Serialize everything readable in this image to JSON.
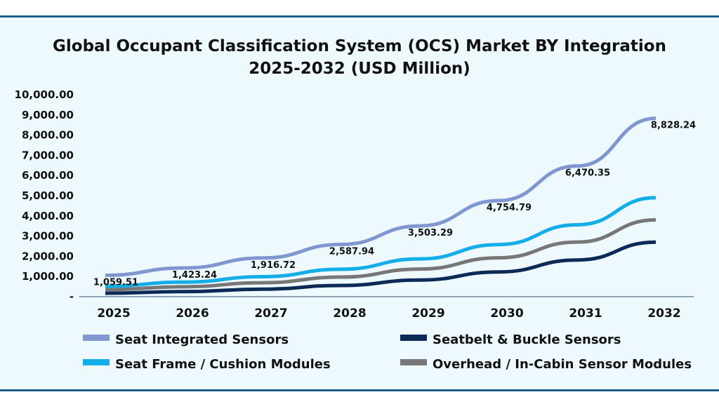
{
  "chart_data": {
    "type": "line",
    "title": "Global Occupant Classification System (OCS) Market BY Integration",
    "subtitle": "2025-2032 (USD Million)",
    "categories": [
      "2025",
      "2026",
      "2027",
      "2028",
      "2029",
      "2030",
      "2031",
      "2032"
    ],
    "y_ticks": [
      "-",
      "1,000.00",
      "2,000.00",
      "3,000.00",
      "4,000.00",
      "5,000.00",
      "6,000.00",
      "7,000.00",
      "8,000.00",
      "9,000.00",
      "10,000.00"
    ],
    "ylim": [
      0,
      10000
    ],
    "grid": false,
    "legend_position": "bottom",
    "series": [
      {
        "name": "Seat Integrated Sensors",
        "color": "#8096d0",
        "values": [
          1059.51,
          1423.24,
          1916.72,
          2587.94,
          3503.29,
          4754.79,
          6470.35,
          8828.24
        ],
        "labels": [
          "1,059.51",
          "1,423.24",
          "1,916.72",
          "2,587.94",
          "3,503.29",
          "4,754.79",
          "6,470.35",
          "8,828.24"
        ]
      },
      {
        "name": "Seat Frame / Cushion Modules",
        "color": "#13aee8",
        "values": [
          520,
          720,
          990,
          1360,
          1870,
          2580,
          3560,
          4900
        ]
      },
      {
        "name": "Overhead / In-Cabin Sensor Modules",
        "color": "#777777",
        "values": [
          350,
          492,
          692,
          973,
          1368,
          1923,
          2703,
          3800
        ]
      },
      {
        "name": "Seatbelt & Buckle Sensors",
        "color": "#0c2a55",
        "values": [
          170,
          252,
          374,
          556,
          825,
          1224,
          1816,
          2700
        ]
      }
    ]
  }
}
